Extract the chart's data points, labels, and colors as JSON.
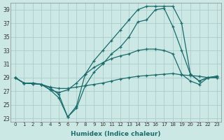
{
  "xlabel": "Humidex (Indice chaleur)",
  "ylabel": "",
  "background_color": "#cce8e4",
  "grid_color": "#aaccca",
  "line_color": "#1a6b6b",
  "xlim": [
    -0.5,
    23.5
  ],
  "ylim": [
    22.5,
    40.0
  ],
  "xticks": [
    0,
    1,
    2,
    3,
    4,
    5,
    6,
    7,
    8,
    9,
    10,
    11,
    12,
    13,
    14,
    15,
    16,
    17,
    18,
    19,
    20,
    21,
    22,
    23
  ],
  "yticks": [
    23,
    25,
    27,
    29,
    31,
    33,
    35,
    37,
    39
  ],
  "series": [
    [
      29,
      28.2,
      28.2,
      28.0,
      27.6,
      27.4,
      27.4,
      27.6,
      27.8,
      28.0,
      28.2,
      28.5,
      28.8,
      29.0,
      29.2,
      29.3,
      29.4,
      29.5,
      29.6,
      29.4,
      29.3,
      29.2,
      29.0,
      29.0
    ],
    [
      29,
      28.2,
      28.1,
      28.0,
      27.2,
      26.8,
      27.2,
      28.2,
      29.5,
      30.5,
      31.2,
      31.8,
      32.2,
      32.5,
      33.0,
      33.2,
      33.2,
      33.0,
      32.5,
      29.5,
      28.5,
      28.0,
      29.0,
      29.0
    ],
    [
      29,
      28.2,
      28.1,
      28.0,
      27.2,
      26.0,
      23.2,
      24.5,
      27.8,
      29.8,
      31.0,
      32.5,
      33.5,
      35.0,
      37.2,
      37.5,
      39.0,
      39.2,
      36.5,
      33.0,
      29.5,
      28.5,
      29.0,
      29.2
    ],
    [
      29,
      28.2,
      28.2,
      28.0,
      27.5,
      26.5,
      23.2,
      24.8,
      29.5,
      31.5,
      33.0,
      34.5,
      36.0,
      37.5,
      39.0,
      39.5,
      39.5,
      39.5,
      39.5,
      37.0,
      29.5,
      28.5,
      29.0,
      29.2
    ]
  ]
}
